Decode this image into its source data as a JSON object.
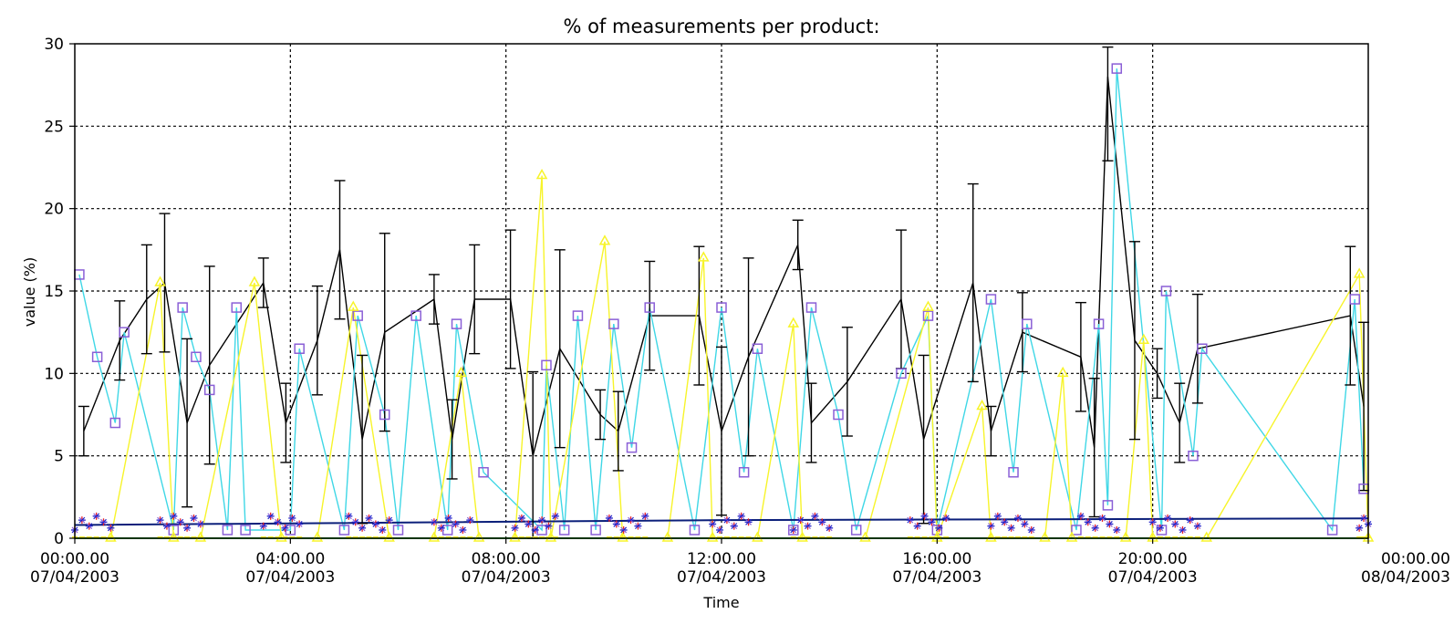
{
  "chart_data": {
    "type": "line",
    "title": "% of measurements per product:",
    "xlabel": "Time",
    "ylabel": "value (%)",
    "ylim": [
      0,
      30
    ],
    "yticks": [
      0,
      5,
      10,
      15,
      20,
      25,
      30
    ],
    "xlim": [
      "2003-04-07 00:00",
      "2003-04-08 00:00"
    ],
    "xticks": [
      {
        "time": "00:00.00",
        "date": "07/04/2003"
      },
      {
        "time": "04:00.00",
        "date": "07/04/2003"
      },
      {
        "time": "08:00.00",
        "date": "07/04/2003"
      },
      {
        "time": "12:00.00",
        "date": "07/04/2003"
      },
      {
        "time": "16:00.00",
        "date": "07/04/2003"
      },
      {
        "time": "20:00.00",
        "date": "07/04/2003"
      },
      {
        "time": "00:00.00",
        "date": "08/04/2003"
      }
    ],
    "grid": true,
    "colors": {
      "black": "#000000",
      "cyan": "#3fd7e6",
      "yellow": "#f7f42a",
      "purple": "#8a5fd6",
      "navy": "#0b1f7a",
      "green": "#32d232",
      "red": "#e8202a",
      "star": "#2020c8"
    },
    "series": [
      {
        "color": "black",
        "marker": "errorbar",
        "points": [
          [
            "00:10",
            6.5
          ],
          [
            "00:50",
            12.0
          ],
          [
            "01:20",
            14.5
          ],
          [
            "01:40",
            15.5
          ],
          [
            "02:05",
            7.0
          ],
          [
            "02:30",
            10.5
          ],
          [
            "03:30",
            15.5
          ],
          [
            "03:55",
            7.0
          ],
          [
            "04:30",
            12.0
          ],
          [
            "04:55",
            17.5
          ],
          [
            "05:20",
            6.0
          ],
          [
            "05:45",
            12.5
          ],
          [
            "06:40",
            14.5
          ],
          [
            "07:00",
            6.0
          ],
          [
            "07:25",
            14.5
          ],
          [
            "08:05",
            14.5
          ],
          [
            "08:30",
            5.0
          ],
          [
            "09:00",
            11.5
          ],
          [
            "09:45",
            7.5
          ],
          [
            "10:05",
            6.5
          ],
          [
            "10:40",
            13.5
          ],
          [
            "11:35",
            13.5
          ],
          [
            "12:00",
            6.5
          ],
          [
            "12:30",
            11.0
          ],
          [
            "13:25",
            17.8
          ],
          [
            "13:40",
            7.0
          ],
          [
            "14:20",
            9.5
          ],
          [
            "15:20",
            14.5
          ],
          [
            "15:45",
            6.0
          ],
          [
            "16:40",
            15.5
          ],
          [
            "17:00",
            6.5
          ],
          [
            "17:35",
            12.5
          ],
          [
            "18:40",
            11.0
          ],
          [
            "18:55",
            5.5
          ],
          [
            "19:10",
            28.0
          ],
          [
            "19:40",
            12.0
          ],
          [
            "20:05",
            10.0
          ],
          [
            "20:30",
            7.0
          ],
          [
            "20:50",
            11.5
          ],
          [
            "23:40",
            13.5
          ],
          [
            "23:55",
            8.0
          ]
        ]
      },
      {
        "color": "cyan",
        "marker": "square",
        "points": [
          [
            "00:05",
            16.0
          ],
          [
            "00:25",
            11.0
          ],
          [
            "00:45",
            7.0
          ],
          [
            "00:55",
            12.5
          ],
          [
            "01:50",
            0.5
          ],
          [
            "02:00",
            14.0
          ],
          [
            "02:15",
            11.0
          ],
          [
            "02:30",
            9.0
          ],
          [
            "02:50",
            0.5
          ],
          [
            "03:00",
            14.0
          ],
          [
            "03:10",
            0.5
          ],
          [
            "04:00",
            0.5
          ],
          [
            "04:10",
            11.5
          ],
          [
            "05:00",
            0.5
          ],
          [
            "05:15",
            13.5
          ],
          [
            "05:45",
            7.5
          ],
          [
            "06:00",
            0.5
          ],
          [
            "06:20",
            13.5
          ],
          [
            "06:55",
            0.5
          ],
          [
            "07:05",
            13.0
          ],
          [
            "07:35",
            4.0
          ],
          [
            "08:40",
            0.5
          ],
          [
            "08:45",
            10.5
          ],
          [
            "09:05",
            0.5
          ],
          [
            "09:20",
            13.5
          ],
          [
            "09:40",
            0.5
          ],
          [
            "10:00",
            13.0
          ],
          [
            "10:20",
            5.5
          ],
          [
            "10:40",
            14.0
          ],
          [
            "11:30",
            0.5
          ],
          [
            "12:00",
            14.0
          ],
          [
            "12:25",
            4.0
          ],
          [
            "12:40",
            11.5
          ],
          [
            "13:20",
            0.5
          ],
          [
            "13:40",
            14.0
          ],
          [
            "14:10",
            7.5
          ],
          [
            "14:30",
            0.5
          ],
          [
            "15:20",
            10.0
          ],
          [
            "15:50",
            13.5
          ],
          [
            "16:00",
            0.5
          ],
          [
            "17:00",
            14.5
          ],
          [
            "17:25",
            4.0
          ],
          [
            "17:40",
            13.0
          ],
          [
            "18:35",
            0.5
          ],
          [
            "19:00",
            13.0
          ],
          [
            "19:10",
            2.0
          ],
          [
            "19:20",
            28.5
          ],
          [
            "20:10",
            0.5
          ],
          [
            "20:15",
            15.0
          ],
          [
            "20:45",
            5.0
          ],
          [
            "20:55",
            11.5
          ],
          [
            "23:20",
            0.5
          ],
          [
            "23:45",
            14.5
          ],
          [
            "23:55",
            3.0
          ]
        ]
      },
      {
        "color": "yellow",
        "marker": "triangle",
        "points": [
          [
            "00:40",
            0.0
          ],
          [
            "01:35",
            15.5
          ],
          [
            "01:50",
            0.0
          ],
          [
            "02:20",
            0.0
          ],
          [
            "03:20",
            15.5
          ],
          [
            "03:50",
            0.0
          ],
          [
            "04:30",
            0.0
          ],
          [
            "05:10",
            14.0
          ],
          [
            "05:50",
            0.0
          ],
          [
            "06:40",
            0.0
          ],
          [
            "07:10",
            10.0
          ],
          [
            "07:30",
            0.0
          ],
          [
            "08:10",
            0.0
          ],
          [
            "08:40",
            22.0
          ],
          [
            "08:50",
            0.0
          ],
          [
            "09:50",
            18.0
          ],
          [
            "10:10",
            0.0
          ],
          [
            "11:00",
            0.0
          ],
          [
            "11:40",
            17.0
          ],
          [
            "11:50",
            0.0
          ],
          [
            "12:40",
            0.0
          ],
          [
            "13:20",
            13.0
          ],
          [
            "13:30",
            0.0
          ],
          [
            "14:40",
            0.0
          ],
          [
            "15:50",
            14.0
          ],
          [
            "16:00",
            0.0
          ],
          [
            "16:50",
            8.0
          ],
          [
            "17:00",
            0.0
          ],
          [
            "18:00",
            0.0
          ],
          [
            "18:20",
            10.0
          ],
          [
            "18:30",
            0.0
          ],
          [
            "19:30",
            0.0
          ],
          [
            "19:50",
            12.0
          ],
          [
            "20:00",
            0.0
          ],
          [
            "21:00",
            0.0
          ],
          [
            "23:50",
            16.0
          ],
          [
            "24:00",
            0.0
          ]
        ]
      },
      {
        "color": "navy",
        "marker": "none",
        "points": [
          [
            "00:00",
            0.8
          ],
          [
            "12:00",
            1.1
          ],
          [
            "24:00",
            1.2
          ]
        ]
      },
      {
        "color": "green",
        "marker": "none",
        "points": [
          [
            "00:00",
            0.0
          ],
          [
            "24:00",
            0.0
          ]
        ]
      }
    ],
    "clusters": [
      {
        "from": "00:00",
        "to": "00:40"
      },
      {
        "from": "01:35",
        "to": "02:20"
      },
      {
        "from": "03:30",
        "to": "04:10"
      },
      {
        "from": "05:05",
        "to": "05:50"
      },
      {
        "from": "06:40",
        "to": "07:20"
      },
      {
        "from": "08:10",
        "to": "08:55"
      },
      {
        "from": "09:55",
        "to": "10:35"
      },
      {
        "from": "11:50",
        "to": "12:30"
      },
      {
        "from": "13:20",
        "to": "14:00"
      },
      {
        "from": "15:30",
        "to": "16:10"
      },
      {
        "from": "17:00",
        "to": "17:45"
      },
      {
        "from": "18:40",
        "to": "19:20"
      },
      {
        "from": "20:00",
        "to": "20:50"
      },
      {
        "from": "23:50",
        "to": "24:00"
      }
    ]
  }
}
